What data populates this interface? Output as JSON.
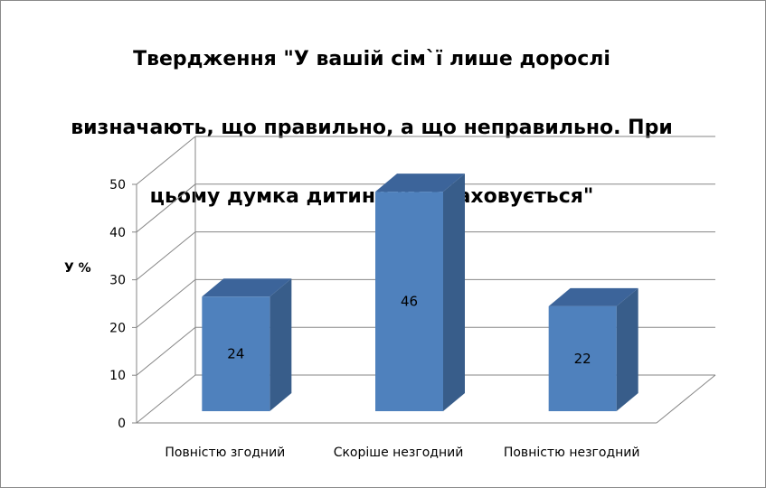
{
  "chart_data": {
    "type": "bar",
    "title": "Твердження \"У вашій сім`ї лише дорослі визначають, що правильно, а що неправильно. При цьому думка дитини не враховується\"",
    "title_lines": [
      "Твердження \"У вашій сім`ї лише дорослі",
      "визначають, що правильно, а що неправильно. При",
      "цьому думка дитини не враховується\""
    ],
    "ylabel": "У %",
    "xlabel": "",
    "categories": [
      "Повністю згодний",
      "Скоріше незгодний",
      "Повністю незгодний"
    ],
    "values": [
      24,
      46,
      22
    ],
    "data_labels": [
      "24",
      "46",
      "22"
    ],
    "ylim": [
      0,
      50
    ],
    "yticks": [
      "0",
      "10",
      "20",
      "30",
      "40",
      "50"
    ],
    "grid": true,
    "three_d": true,
    "legend": "none"
  },
  "colors": {
    "bar_front": "#4f81bd",
    "bar_side": "#385d8a",
    "bar_top": "#3c649a",
    "gridline": "#868686"
  }
}
